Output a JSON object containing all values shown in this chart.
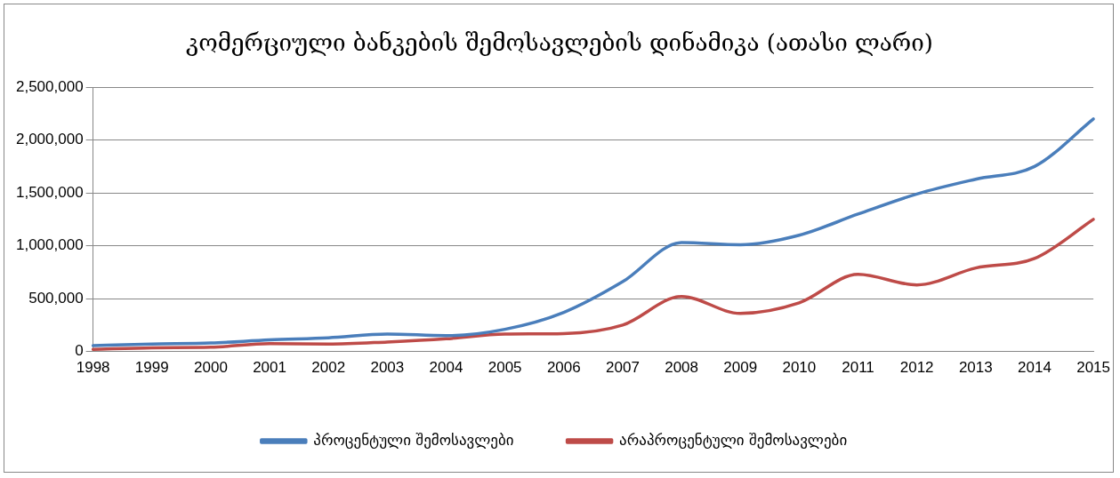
{
  "chart_data": {
    "type": "line",
    "title": "კომერციული ბანკების შემოსავლების დინამიკა (ათასი ლარი)",
    "categories": [
      "1998",
      "1999",
      "2000",
      "2001",
      "2002",
      "2003",
      "2004",
      "2005",
      "2006",
      "2007",
      "2008",
      "2009",
      "2010",
      "2011",
      "2012",
      "2013",
      "2014",
      "2015"
    ],
    "series": [
      {
        "name": "პროცენტული შემოსავლები",
        "color": "#4a7ebb",
        "values": [
          55000,
          70000,
          80000,
          110000,
          130000,
          165000,
          150000,
          210000,
          370000,
          660000,
          1030000,
          1010000,
          1100000,
          1300000,
          1490000,
          1630000,
          1750000,
          2200000
        ]
      },
      {
        "name": "არაპროცენტული შემოსავლები",
        "color": "#be4b48",
        "values": [
          20000,
          35000,
          40000,
          75000,
          70000,
          90000,
          120000,
          165000,
          170000,
          250000,
          520000,
          360000,
          460000,
          730000,
          630000,
          790000,
          880000,
          1250000
        ]
      }
    ],
    "ylim": [
      0,
      2500000
    ],
    "yticks": [
      {
        "value": 0,
        "label": "0"
      },
      {
        "value": 500000,
        "label": "500,000"
      },
      {
        "value": 1000000,
        "label": "1,000,000"
      },
      {
        "value": 1500000,
        "label": "1,500,000"
      },
      {
        "value": 2000000,
        "label": "2,000,000"
      },
      {
        "value": 2500000,
        "label": "2,500,000"
      }
    ],
    "grid": "y",
    "legend": "bottom",
    "marker": "none",
    "line_style": "solid"
  }
}
